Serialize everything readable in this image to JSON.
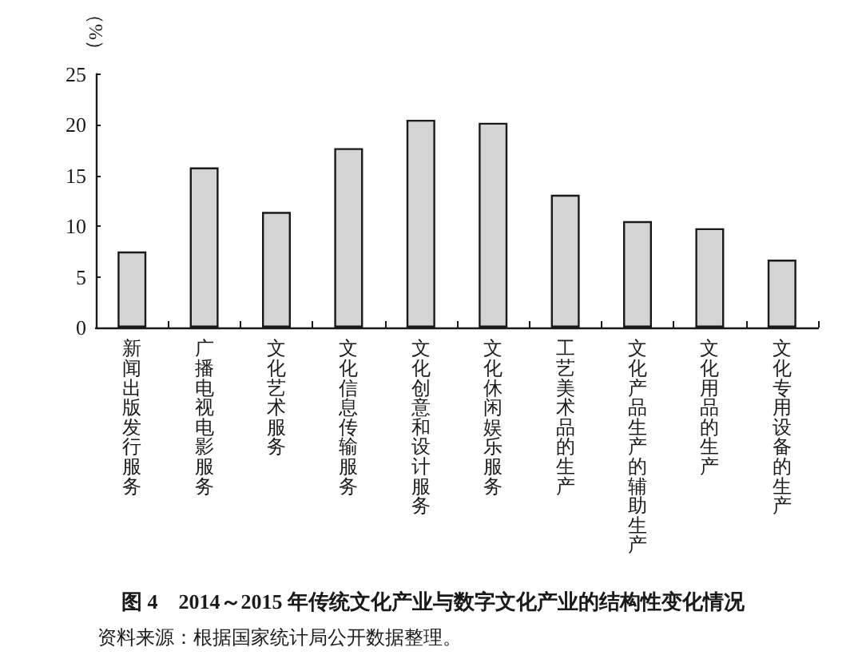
{
  "chart_data": {
    "type": "bar",
    "title": "图 4　2014～2015 年传统文化产业与数字文化产业的结构性变化情况",
    "ylabel": "（%）",
    "categories": [
      "新闻出版发行服务",
      "广播电视电影服务",
      "文化艺术服务",
      "文化信息传输服务",
      "文化创意和设计服务",
      "文化休闲娱乐服务",
      "工艺美术品的生产",
      "文化产品生产的辅助生产",
      "文化用品的生产",
      "文化专用设备的生产"
    ],
    "values": [
      7.5,
      15.8,
      11.4,
      17.7,
      20.5,
      20.2,
      13.1,
      10.5,
      9.8,
      6.7
    ],
    "color": "#d4d4d4",
    "ylim": [
      0,
      25
    ],
    "yticks": [
      0,
      5,
      10,
      15,
      20,
      25
    ],
    "annotations": [
      "资料来源：根据国家统计局公开数据整理。"
    ]
  }
}
